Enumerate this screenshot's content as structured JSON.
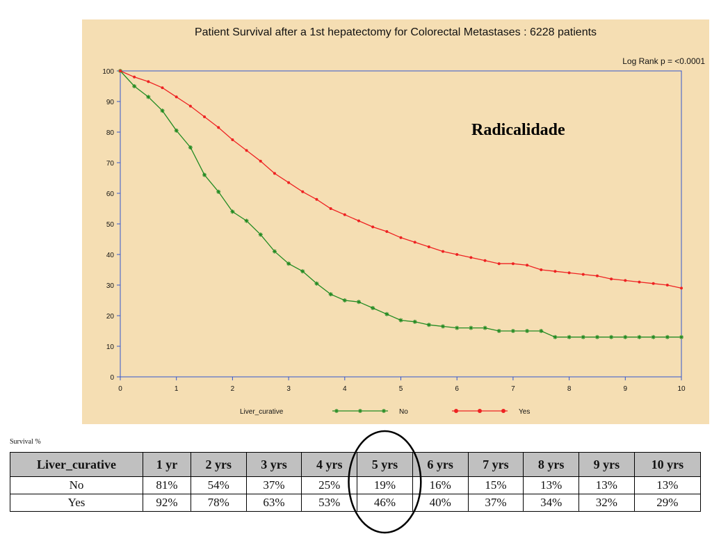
{
  "chart_data": {
    "type": "line",
    "title": "Patient Survival after a 1st hepatectomy for Colorectal Metastases : 6228 patients",
    "annotation": "Log Rank p = <0.0001",
    "overlay_text": "Radicalidade",
    "legend_title": "Liver_curative",
    "legend_position": "bottom",
    "xlim": [
      0,
      10
    ],
    "ylim": [
      0,
      100
    ],
    "x_ticks": [
      "0",
      "1",
      "2",
      "3",
      "4",
      "5",
      "6",
      "7",
      "8",
      "9",
      "10"
    ],
    "y_ticks": [
      "0",
      "10",
      "20",
      "30",
      "40",
      "50",
      "60",
      "70",
      "80",
      "90",
      "100"
    ],
    "grid": false,
    "series": [
      {
        "name": "No",
        "color": "#228b22",
        "marker": "star",
        "x": [
          0,
          0.25,
          0.5,
          0.75,
          1,
          1.25,
          1.5,
          1.75,
          2,
          2.25,
          2.5,
          2.75,
          3,
          3.25,
          3.5,
          3.75,
          4,
          4.25,
          4.5,
          4.75,
          5,
          5.25,
          5.5,
          5.75,
          6,
          6.25,
          6.5,
          6.75,
          7,
          7.25,
          7.5,
          7.75,
          8,
          8.25,
          8.5,
          8.75,
          9,
          9.25,
          9.5,
          9.75,
          10
        ],
        "y": [
          100,
          95,
          91.5,
          87,
          80.5,
          75,
          66,
          60.5,
          54,
          51,
          46.5,
          41,
          37,
          34.5,
          30.5,
          27,
          25,
          24.5,
          22.5,
          20.5,
          18.5,
          18,
          17,
          16.5,
          16,
          16,
          16,
          15,
          15,
          15,
          15,
          13,
          13,
          13,
          13,
          13,
          13,
          13,
          13,
          13,
          13
        ]
      },
      {
        "name": "Yes",
        "color": "#ee2222",
        "marker": "circle",
        "x": [
          0,
          0.25,
          0.5,
          0.75,
          1,
          1.25,
          1.5,
          1.75,
          2,
          2.25,
          2.5,
          2.75,
          3,
          3.25,
          3.5,
          3.75,
          4,
          4.25,
          4.5,
          4.75,
          5,
          5.25,
          5.5,
          5.75,
          6,
          6.25,
          6.5,
          6.75,
          7,
          7.25,
          7.5,
          7.75,
          8,
          8.25,
          8.5,
          8.75,
          9,
          9.25,
          9.5,
          9.75,
          10
        ],
        "y": [
          100,
          98,
          96.5,
          94.5,
          91.5,
          88.5,
          85,
          81.5,
          77.5,
          74,
          70.5,
          66.5,
          63.5,
          60.5,
          58,
          55,
          53,
          51,
          49,
          47.5,
          45.5,
          44,
          42.5,
          41,
          40,
          39,
          38,
          37,
          37,
          36.5,
          35,
          34.5,
          34,
          33.5,
          33,
          32,
          31.5,
          31,
          30.5,
          30,
          29
        ]
      }
    ]
  },
  "table": {
    "caption": "Survival %",
    "columns": [
      "Liver_curative",
      "1 yr",
      "2 yrs",
      "3 yrs",
      "4 yrs",
      "5 yrs",
      "6 yrs",
      "7 yrs",
      "8 yrs",
      "9 yrs",
      "10 yrs"
    ],
    "rows": [
      {
        "label": "No",
        "values": [
          "81%",
          "54%",
          "37%",
          "25%",
          "19%",
          "16%",
          "15%",
          "13%",
          "13%",
          "13%"
        ]
      },
      {
        "label": "Yes",
        "values": [
          "92%",
          "78%",
          "63%",
          "53%",
          "46%",
          "40%",
          "37%",
          "34%",
          "32%",
          "29%"
        ]
      }
    ],
    "highlighted_column": "5 yrs"
  }
}
